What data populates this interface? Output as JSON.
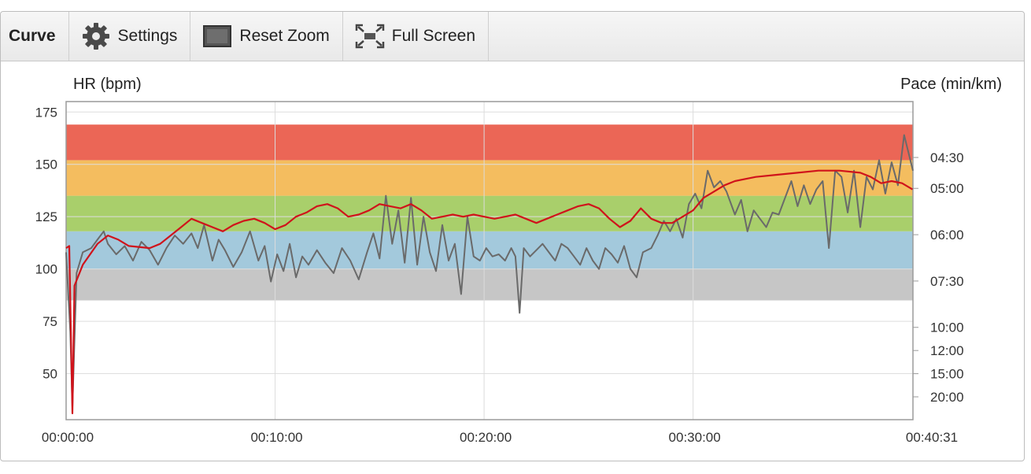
{
  "toolbar": {
    "title": "Curve",
    "settings_label": "Settings",
    "reset_zoom_label": "Reset Zoom",
    "full_screen_label": "Full Screen",
    "icons": [
      "gear-icon",
      "reset-zoom-icon",
      "full-screen-icon"
    ]
  },
  "chart_data": {
    "type": "line",
    "title": "",
    "left_axis": {
      "label": "HR (bpm)",
      "ylim": [
        28,
        180
      ],
      "ticks": [
        50,
        75,
        100,
        125,
        150,
        175
      ]
    },
    "right_axis": {
      "label": "Pace (min/km)",
      "scale": "reciprocal",
      "tick_labels": [
        "04:30",
        "05:00",
        "06:00",
        "07:30",
        "10:00",
        "12:00",
        "15:00",
        "20:00"
      ]
    },
    "x_axis": {
      "tick_labels": [
        "00:00:00",
        "00:10:00",
        "00:20:00",
        "00:30:00",
        "00:40:31"
      ],
      "tick_minutes": [
        0,
        10,
        20,
        30,
        40.52
      ],
      "xlim_minutes": [
        0,
        40.52
      ]
    },
    "grid": true,
    "hr_zones": [
      {
        "from": 85,
        "to": 100,
        "color": "#c6c6c6"
      },
      {
        "from": 100,
        "to": 118,
        "color": "#a3c9dc"
      },
      {
        "from": 118,
        "to": 135,
        "color": "#a9cf6b"
      },
      {
        "from": 135,
        "to": 152,
        "color": "#f4bd5f"
      },
      {
        "from": 152,
        "to": 169,
        "color": "#eb6656"
      }
    ],
    "series": [
      {
        "color": "#d0131b",
        "points": [
          [
            0,
            110
          ],
          [
            0.15,
            111
          ],
          [
            0.3,
            31
          ],
          [
            0.4,
            92
          ],
          [
            0.8,
            102
          ],
          [
            1.5,
            112
          ],
          [
            2,
            116
          ],
          [
            2.5,
            114
          ],
          [
            3,
            111
          ],
          [
            4,
            110
          ],
          [
            4.5,
            112
          ],
          [
            5,
            116
          ],
          [
            5.5,
            120
          ],
          [
            6,
            124
          ],
          [
            6.5,
            122
          ],
          [
            7,
            120
          ],
          [
            7.5,
            118
          ],
          [
            8,
            121
          ],
          [
            8.5,
            123
          ],
          [
            9,
            124
          ],
          [
            9.5,
            122
          ],
          [
            10,
            119
          ],
          [
            10.5,
            121
          ],
          [
            11,
            125
          ],
          [
            11.5,
            127
          ],
          [
            12,
            130
          ],
          [
            12.5,
            131
          ],
          [
            13,
            129
          ],
          [
            13.5,
            125
          ],
          [
            14,
            126
          ],
          [
            14.5,
            128
          ],
          [
            15,
            131
          ],
          [
            15.5,
            130
          ],
          [
            16,
            129
          ],
          [
            16.5,
            131
          ],
          [
            17,
            128
          ],
          [
            17.5,
            124
          ],
          [
            18,
            125
          ],
          [
            18.5,
            126
          ],
          [
            19,
            125
          ],
          [
            19.5,
            126
          ],
          [
            20,
            125
          ],
          [
            20.5,
            124
          ],
          [
            21,
            125
          ],
          [
            21.5,
            126
          ],
          [
            22,
            124
          ],
          [
            22.5,
            122
          ],
          [
            23,
            124
          ],
          [
            23.5,
            126
          ],
          [
            24,
            128
          ],
          [
            24.5,
            130
          ],
          [
            25,
            131
          ],
          [
            25.5,
            129
          ],
          [
            26,
            124
          ],
          [
            26.5,
            120
          ],
          [
            27,
            123
          ],
          [
            27.5,
            129
          ],
          [
            28,
            124
          ],
          [
            28.5,
            122
          ],
          [
            29,
            122
          ],
          [
            29.5,
            125
          ],
          [
            30,
            128
          ],
          [
            30.5,
            134
          ],
          [
            31,
            137
          ],
          [
            31.5,
            140
          ],
          [
            32,
            142
          ],
          [
            32.5,
            143
          ],
          [
            33,
            144
          ],
          [
            34,
            145
          ],
          [
            35,
            146
          ],
          [
            36,
            147
          ],
          [
            37,
            147
          ],
          [
            38,
            146
          ],
          [
            38.5,
            144
          ],
          [
            39,
            141
          ],
          [
            39.5,
            142
          ],
          [
            40,
            141
          ],
          [
            40.5,
            138
          ]
        ]
      },
      {
        "color": "#6a6a6a",
        "points": [
          [
            0,
            108
          ],
          [
            0.2,
            70
          ],
          [
            0.3,
            34
          ],
          [
            0.5,
            98
          ],
          [
            0.8,
            108
          ],
          [
            1.2,
            110
          ],
          [
            1.5,
            114
          ],
          [
            1.8,
            118
          ],
          [
            2,
            112
          ],
          [
            2.4,
            107
          ],
          [
            2.8,
            111
          ],
          [
            3.2,
            104
          ],
          [
            3.6,
            113
          ],
          [
            4,
            109
          ],
          [
            4.4,
            102
          ],
          [
            4.8,
            110
          ],
          [
            5.2,
            116
          ],
          [
            5.6,
            112
          ],
          [
            6,
            117
          ],
          [
            6.3,
            110
          ],
          [
            6.6,
            121
          ],
          [
            7,
            104
          ],
          [
            7.3,
            114
          ],
          [
            7.6,
            109
          ],
          [
            8,
            101
          ],
          [
            8.4,
            108
          ],
          [
            8.8,
            118
          ],
          [
            9.2,
            104
          ],
          [
            9.5,
            111
          ],
          [
            9.8,
            94
          ],
          [
            10.1,
            107
          ],
          [
            10.4,
            99
          ],
          [
            10.7,
            112
          ],
          [
            11,
            96
          ],
          [
            11.3,
            106
          ],
          [
            11.6,
            102
          ],
          [
            12,
            109
          ],
          [
            12.4,
            103
          ],
          [
            12.8,
            98
          ],
          [
            13.2,
            110
          ],
          [
            13.6,
            104
          ],
          [
            14,
            95
          ],
          [
            14.4,
            108
          ],
          [
            14.7,
            117
          ],
          [
            15,
            105
          ],
          [
            15.3,
            135
          ],
          [
            15.6,
            112
          ],
          [
            15.9,
            128
          ],
          [
            16.2,
            103
          ],
          [
            16.5,
            134
          ],
          [
            16.8,
            102
          ],
          [
            17.1,
            125
          ],
          [
            17.4,
            108
          ],
          [
            17.7,
            99
          ],
          [
            18,
            121
          ],
          [
            18.3,
            104
          ],
          [
            18.6,
            112
          ],
          [
            18.9,
            88
          ],
          [
            19.2,
            125
          ],
          [
            19.5,
            106
          ],
          [
            19.8,
            104
          ],
          [
            20.1,
            110
          ],
          [
            20.4,
            106
          ],
          [
            20.7,
            107
          ],
          [
            21,
            104
          ],
          [
            21.3,
            110
          ],
          [
            21.5,
            106
          ],
          [
            21.7,
            79
          ],
          [
            21.9,
            110
          ],
          [
            22.2,
            106
          ],
          [
            22.5,
            109
          ],
          [
            22.8,
            112
          ],
          [
            23.1,
            108
          ],
          [
            23.4,
            104
          ],
          [
            23.7,
            112
          ],
          [
            24,
            110
          ],
          [
            24.3,
            106
          ],
          [
            24.6,
            102
          ],
          [
            24.9,
            110
          ],
          [
            25.2,
            104
          ],
          [
            25.5,
            100
          ],
          [
            25.8,
            110
          ],
          [
            26.1,
            107
          ],
          [
            26.4,
            103
          ],
          [
            26.7,
            111
          ],
          [
            27,
            100
          ],
          [
            27.3,
            96
          ],
          [
            27.6,
            108
          ],
          [
            28,
            110
          ],
          [
            28.3,
            116
          ],
          [
            28.6,
            123
          ],
          [
            28.9,
            118
          ],
          [
            29.2,
            124
          ],
          [
            29.5,
            115
          ],
          [
            29.8,
            131
          ],
          [
            30.1,
            136
          ],
          [
            30.4,
            129
          ],
          [
            30.7,
            147
          ],
          [
            31,
            139
          ],
          [
            31.3,
            142
          ],
          [
            31.6,
            137
          ],
          [
            32,
            126
          ],
          [
            32.3,
            133
          ],
          [
            32.6,
            118
          ],
          [
            32.9,
            128
          ],
          [
            33.2,
            124
          ],
          [
            33.5,
            120
          ],
          [
            33.8,
            127
          ],
          [
            34.1,
            126
          ],
          [
            34.4,
            134
          ],
          [
            34.7,
            142
          ],
          [
            35,
            130
          ],
          [
            35.3,
            140
          ],
          [
            35.6,
            131
          ],
          [
            35.9,
            138
          ],
          [
            36.2,
            142
          ],
          [
            36.5,
            110
          ],
          [
            36.8,
            147
          ],
          [
            37.1,
            144
          ],
          [
            37.4,
            127
          ],
          [
            37.7,
            147
          ],
          [
            38,
            120
          ],
          [
            38.3,
            144
          ],
          [
            38.6,
            138
          ],
          [
            38.9,
            152
          ],
          [
            39.2,
            136
          ],
          [
            39.5,
            151
          ],
          [
            39.8,
            140
          ],
          [
            40.1,
            164
          ],
          [
            40.52,
            147
          ]
        ]
      }
    ]
  }
}
